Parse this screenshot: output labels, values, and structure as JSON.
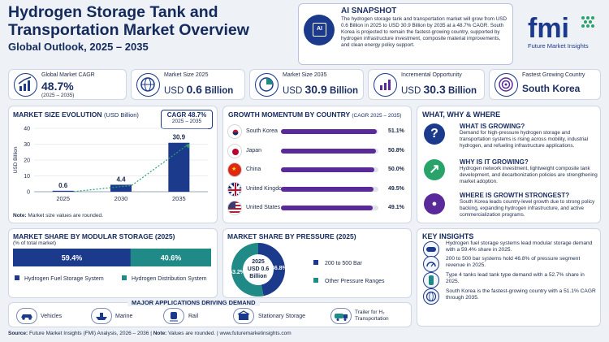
{
  "header": {
    "title": "Hydrogen Storage Tank and Transportation Market Overview",
    "subtitle": "Global Outlook, 2025 – 2035"
  },
  "ai_snapshot": {
    "label": "AI SNAPSHOT",
    "icon_text": "AI",
    "text": "The hydrogen storage tank and transportation market will grow from USD 0.6 Billion in 2025 to USD 30.9 Billion by 2035 at a 48.7% CAGR. South Korea is projected to remain the fastest-growing country, supported by hydrogen infrastructure investment, composite material improvements, and clean energy policy support."
  },
  "logo": {
    "text": "fmi",
    "tagline": "Future Market Insights"
  },
  "kpis": [
    {
      "label": "Global Market CAGR",
      "value": "48.7%",
      "sub": "(2025 – 2035)",
      "icon": "growth-chart-icon"
    },
    {
      "label": "Market Size 2025",
      "prefix": "USD",
      "value": "0.6",
      "unit": "Billion",
      "icon": "globe-icon"
    },
    {
      "label": "Market Size 2035",
      "prefix": "USD",
      "value": "30.9",
      "unit": "Billion",
      "icon": "pie-chart-icon"
    },
    {
      "label": "Incremental Opportunity",
      "prefix": "USD",
      "value": "30.3",
      "unit": "Billion",
      "icon": "bar-growth-icon"
    },
    {
      "label": "Fastest Growing Country",
      "value": "South Korea",
      "icon": "target-icon"
    }
  ],
  "market_size": {
    "title": "MARKET SIZE EVOLUTION",
    "title_unit": "(USD Billion)",
    "cagr_label": "CAGR 48.7%",
    "cagr_period": "2025 – 2035",
    "note_bold": "Note:",
    "note": "Market size values are rounded."
  },
  "momentum": {
    "title": "GROWTH MOMENTUM BY COUNTRY",
    "title_sub": "(CAGR 2025 – 2035)"
  },
  "modular": {
    "title": "MARKET SHARE BY MODULAR STORAGE (2025)",
    "sub": "(% of total market)"
  },
  "pressure": {
    "title": "MARKET SHARE BY PRESSURE (2025)",
    "center_year": "2025",
    "center_value": "USD 0.6",
    "center_unit": "Billion"
  },
  "www": {
    "title": "WHAT, WHY & WHERE",
    "items": [
      {
        "icon": "question-icon",
        "glyph": "?",
        "heading": "WHAT IS GROWING?",
        "text": "Demand for high-pressure hydrogen storage and transportation systems is rising across mobility, industrial hydrogen, and refueling infrastructure applications."
      },
      {
        "icon": "growth-icon",
        "glyph": "↗",
        "heading": "WHY IS IT GROWING?",
        "text": "Hydrogen network investment, lightweight composite tank development, and decarbonization policies are strengthening market adoption."
      },
      {
        "icon": "location-pin-icon",
        "glyph": "●",
        "heading": "WHERE IS GROWTH STRONGEST?",
        "text": "South Korea leads country-level growth due to strong policy backing, expanding hydrogen infrastructure, and active commercialization programs."
      }
    ]
  },
  "key_insights": {
    "title": "KEY INSIGHTS",
    "items": [
      {
        "icon": "tank-icon",
        "text": "Hydrogen fuel storage systems lead modular storage demand with a 59.4% share in 2025."
      },
      {
        "icon": "gauge-icon",
        "text": "200 to 500 bar systems hold 46.8% of pressure segment revenue in 2025."
      },
      {
        "icon": "cylinder-icon",
        "text": "Type 4 tanks lead tank type demand with a 52.7% share in 2025."
      },
      {
        "icon": "globe-icon",
        "text": "South Korea is the fastest-growing country with a 51.1% CAGR through 2035."
      }
    ]
  },
  "applications": {
    "title": "MAJOR APPLICATIONS DRIVING DEMAND",
    "items": [
      {
        "icon": "car-icon",
        "label": "Vehicles"
      },
      {
        "icon": "ship-icon",
        "label": "Marine"
      },
      {
        "icon": "train-icon",
        "label": "Rail"
      },
      {
        "icon": "station-icon",
        "label": "Stationary Storage"
      },
      {
        "icon": "truck-icon",
        "label": "Trailer for H₂ Transportation"
      }
    ]
  },
  "footer": {
    "source_bold": "Source:",
    "source": "Future Market Insights (FMI) Analysis, 2026 – 2036",
    "note_bold": "Note:",
    "note": "Values are rounded.",
    "url": "www.futuremarketinsights.com"
  },
  "colors": {
    "navy": "#1c3a8c",
    "teal": "#1f8a86",
    "purple": "#5a2a9a",
    "green": "#2aa36b"
  },
  "chart_data": [
    {
      "type": "bar",
      "title": "MARKET SIZE EVOLUTION",
      "ylabel": "USD Billion",
      "categories": [
        "2025",
        "2030",
        "2035"
      ],
      "values": [
        0.6,
        4.4,
        30.9
      ],
      "ylim": [
        0,
        40
      ],
      "yticks": [
        0,
        10,
        20,
        30,
        40
      ],
      "value_labels": [
        "0.6",
        "4.4",
        "30.9"
      ]
    },
    {
      "type": "bar",
      "orientation": "horizontal",
      "title": "GROWTH MOMENTUM BY COUNTRY",
      "categories": [
        "South Korea",
        "Japan",
        "China",
        "United Kingdom",
        "United States"
      ],
      "values": [
        51.1,
        50.8,
        50.0,
        49.5,
        49.1
      ],
      "value_labels": [
        "51.1%",
        "50.8%",
        "50.0%",
        "49.5%",
        "49.1%"
      ]
    },
    {
      "type": "bar",
      "orientation": "stacked-horizontal",
      "title": "MARKET SHARE BY MODULAR STORAGE (2025)",
      "categories": [
        "Hydrogen Fuel Storage System",
        "Hydrogen Distribution System"
      ],
      "values": [
        59.4,
        40.6
      ],
      "value_labels": [
        "59.4%",
        "40.6%"
      ]
    },
    {
      "type": "pie",
      "title": "MARKET SHARE BY PRESSURE (2025)",
      "categories": [
        "200 to 500 Bar",
        "Other Pressure Ranges"
      ],
      "values": [
        46.8,
        53.2
      ],
      "value_labels": [
        "46.8%",
        "53.2%"
      ]
    }
  ]
}
